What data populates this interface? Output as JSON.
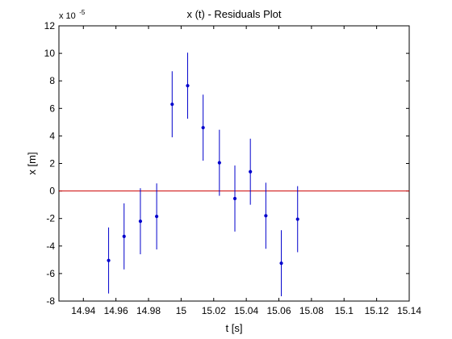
{
  "chart_data": {
    "type": "scatter",
    "title": "x (t) - Residuals Plot",
    "xlabel": "t [s]",
    "ylabel": "x [m]",
    "y_exponent_label": {
      "base": "x 10",
      "exponent": "-5"
    },
    "xlim": [
      14.925,
      15.14
    ],
    "ylim": [
      -8,
      12
    ],
    "x_ticks": [
      14.94,
      14.96,
      14.98,
      15,
      15.02,
      15.04,
      15.06,
      15.08,
      15.1,
      15.12,
      15.14
    ],
    "x_tick_labels": [
      "14.94",
      "14.96",
      "14.98",
      "15",
      "15.02",
      "15.04",
      "15.06",
      "15.08",
      "15.1",
      "15.12",
      "15.14"
    ],
    "y_ticks": [
      -8,
      -6,
      -4,
      -2,
      0,
      2,
      4,
      6,
      8,
      10,
      12
    ],
    "y_tick_labels": [
      "-8",
      "-6",
      "-4",
      "-2",
      "0",
      "2",
      "4",
      "6",
      "8",
      "10",
      "12"
    ],
    "grid": false,
    "reference_line": {
      "y": 0,
      "color": "#cc0000"
    },
    "series": [
      {
        "color": "#0000cc",
        "marker": "dot",
        "error_bars": "vertical",
        "points": [
          {
            "x": 14.9555,
            "y": -5.05,
            "err": 2.4
          },
          {
            "x": 14.965,
            "y": -3.3,
            "err": 2.4
          },
          {
            "x": 14.975,
            "y": -2.2,
            "err": 2.4
          },
          {
            "x": 14.985,
            "y": -1.85,
            "err": 2.4
          },
          {
            "x": 14.9945,
            "y": 6.3,
            "err": 2.4
          },
          {
            "x": 15.004,
            "y": 7.65,
            "err": 2.4
          },
          {
            "x": 15.0135,
            "y": 4.6,
            "err": 2.4
          },
          {
            "x": 15.0235,
            "y": 2.05,
            "err": 2.4
          },
          {
            "x": 15.033,
            "y": -0.55,
            "err": 2.4
          },
          {
            "x": 15.0425,
            "y": 1.4,
            "err": 2.4
          },
          {
            "x": 15.052,
            "y": -1.8,
            "err": 2.4
          },
          {
            "x": 15.0615,
            "y": -5.25,
            "err": 2.4
          },
          {
            "x": 15.0715,
            "y": -2.05,
            "err": 2.4
          }
        ]
      }
    ]
  }
}
